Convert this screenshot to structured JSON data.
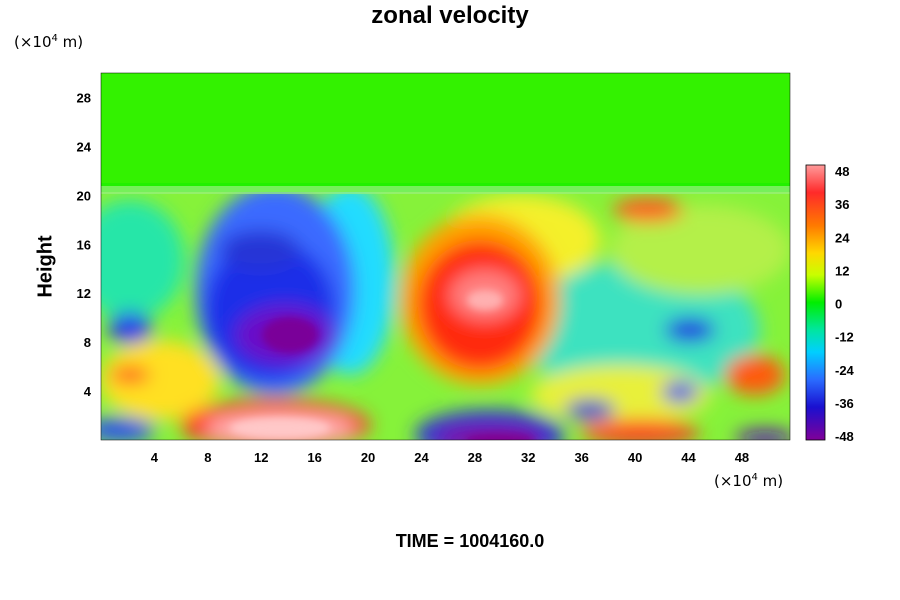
{
  "chart_data": {
    "type": "heatmap",
    "title": "zonal velocity",
    "ylabel": "Height",
    "y_unit": "(×10⁴ m)",
    "x_unit": "(×10⁴ m)",
    "xlim": [
      0,
      51.6
    ],
    "ylim": [
      0,
      30
    ],
    "x_ticks": [
      4,
      8,
      12,
      16,
      20,
      24,
      28,
      32,
      36,
      40,
      44,
      48
    ],
    "y_ticks": [
      4,
      8,
      12,
      16,
      20,
      24,
      28
    ],
    "colorbar": {
      "ticks": [
        48,
        36,
        24,
        12,
        0,
        -12,
        -24,
        -36,
        -48
      ],
      "range": [
        -48,
        48
      ],
      "colors": [
        "#7a0099",
        "#2200cc",
        "#2a5cff",
        "#00c8ff",
        "#00e8b0",
        "#00ee00",
        "#aaff00",
        "#ffff00",
        "#ffb000",
        "#ff6000",
        "#ff1010",
        "#ff9090"
      ]
    },
    "field_features": [
      {
        "x": 13,
        "y": 11,
        "value": -44
      },
      {
        "x": 14,
        "y": 8.5,
        "value": -48
      },
      {
        "x": 29,
        "y": 11,
        "value": 44
      },
      {
        "x": 14,
        "y": 1.5,
        "value": 48
      },
      {
        "x": 29,
        "y": 0.8,
        "value": -48
      },
      {
        "x": 40,
        "y": 19,
        "value": 30
      },
      {
        "x": 47,
        "y": 5,
        "value": 28
      },
      {
        "x": 45,
        "y": 9,
        "value": -38
      },
      {
        "x": 2,
        "y": 9,
        "value": -36
      }
    ],
    "time_label": "TIME = 1004160.0"
  }
}
